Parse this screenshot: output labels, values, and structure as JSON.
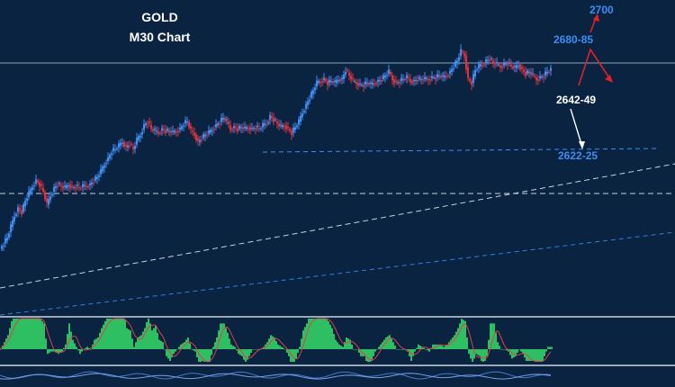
{
  "chart_data": {
    "type": "candlestick",
    "title": "GOLD",
    "subtitle": "M30 Chart",
    "levels": [
      {
        "label": "2700",
        "color": "#3d8ef5"
      },
      {
        "label": "2680-85",
        "color": "#3d8ef5"
      },
      {
        "label": "2642-49",
        "color": "#ffffff"
      },
      {
        "label": "2622-25",
        "color": "#3d8ef5"
      }
    ],
    "colors": {
      "background": "#0a2340",
      "bull_candle": "#3d8ef5",
      "bear_candle": "#e0303a",
      "histogram": "#2fbf63",
      "signal": "#e04048",
      "arrow_red": "#e0202a",
      "arrow_white": "#ffffff"
    },
    "price_path": [
      [
        0,
        2598
      ],
      [
        4,
        2601
      ],
      [
        8,
        2604
      ],
      [
        12,
        2610
      ],
      [
        16,
        2616
      ],
      [
        20,
        2620
      ],
      [
        24,
        2618
      ],
      [
        28,
        2624
      ],
      [
        32,
        2628
      ],
      [
        36,
        2632
      ],
      [
        40,
        2635
      ],
      [
        44,
        2633
      ],
      [
        48,
        2629
      ],
      [
        52,
        2622
      ],
      [
        56,
        2627
      ],
      [
        60,
        2631
      ],
      [
        64,
        2633
      ],
      [
        68,
        2632
      ],
      [
        72,
        2631
      ],
      [
        76,
        2633
      ],
      [
        80,
        2631
      ],
      [
        84,
        2632
      ],
      [
        88,
        2631
      ],
      [
        92,
        2632
      ],
      [
        96,
        2632
      ],
      [
        100,
        2633
      ],
      [
        104,
        2635
      ],
      [
        108,
        2637
      ],
      [
        112,
        2640
      ],
      [
        116,
        2644
      ],
      [
        120,
        2647
      ],
      [
        124,
        2651
      ],
      [
        128,
        2652
      ],
      [
        132,
        2654
      ],
      [
        136,
        2656
      ],
      [
        140,
        2653
      ],
      [
        144,
        2655
      ],
      [
        148,
        2652
      ],
      [
        152,
        2657
      ],
      [
        156,
        2660
      ],
      [
        160,
        2665
      ],
      [
        164,
        2667
      ],
      [
        168,
        2663
      ],
      [
        172,
        2662
      ],
      [
        176,
        2661
      ],
      [
        180,
        2663
      ],
      [
        184,
        2662
      ],
      [
        188,
        2662
      ],
      [
        192,
        2661
      ],
      [
        196,
        2662
      ],
      [
        200,
        2663
      ],
      [
        204,
        2666
      ],
      [
        208,
        2667
      ],
      [
        212,
        2662
      ],
      [
        216,
        2660
      ],
      [
        220,
        2656
      ],
      [
        224,
        2658
      ],
      [
        228,
        2660
      ],
      [
        232,
        2661
      ],
      [
        236,
        2663
      ],
      [
        240,
        2665
      ],
      [
        244,
        2667
      ],
      [
        248,
        2669
      ],
      [
        252,
        2667
      ],
      [
        256,
        2663
      ],
      [
        260,
        2664
      ],
      [
        264,
        2663
      ],
      [
        268,
        2664
      ],
      [
        272,
        2663
      ],
      [
        276,
        2664
      ],
      [
        280,
        2663
      ],
      [
        284,
        2664
      ],
      [
        288,
        2663
      ],
      [
        292,
        2665
      ],
      [
        296,
        2666
      ],
      [
        300,
        2670
      ],
      [
        304,
        2668
      ],
      [
        308,
        2666
      ],
      [
        312,
        2664
      ],
      [
        316,
        2665
      ],
      [
        320,
        2663
      ],
      [
        324,
        2661
      ],
      [
        328,
        2664
      ],
      [
        332,
        2667
      ],
      [
        336,
        2672
      ],
      [
        340,
        2676
      ],
      [
        344,
        2680
      ],
      [
        348,
        2684
      ],
      [
        352,
        2688
      ],
      [
        356,
        2689
      ],
      [
        360,
        2690
      ],
      [
        364,
        2688
      ],
      [
        368,
        2689
      ],
      [
        372,
        2688
      ],
      [
        376,
        2690
      ],
      [
        380,
        2690
      ],
      [
        384,
        2695
      ],
      [
        388,
        2692
      ],
      [
        392,
        2689
      ],
      [
        396,
        2688
      ],
      [
        400,
        2687
      ],
      [
        404,
        2687
      ],
      [
        408,
        2688
      ],
      [
        412,
        2687
      ],
      [
        416,
        2688
      ],
      [
        420,
        2689
      ],
      [
        424,
        2690
      ],
      [
        428,
        2692
      ],
      [
        432,
        2694
      ],
      [
        436,
        2690
      ],
      [
        440,
        2688
      ],
      [
        444,
        2689
      ],
      [
        448,
        2690
      ],
      [
        452,
        2691
      ],
      [
        456,
        2689
      ],
      [
        460,
        2689
      ],
      [
        464,
        2690
      ],
      [
        468,
        2690
      ],
      [
        472,
        2690
      ],
      [
        476,
        2690
      ],
      [
        480,
        2691
      ],
      [
        484,
        2691
      ],
      [
        488,
        2692
      ],
      [
        492,
        2691
      ],
      [
        496,
        2692
      ],
      [
        500,
        2694
      ],
      [
        504,
        2697
      ],
      [
        508,
        2700
      ],
      [
        512,
        2705
      ],
      [
        516,
        2703
      ],
      [
        520,
        2690
      ],
      [
        524,
        2688
      ],
      [
        528,
        2695
      ],
      [
        532,
        2697
      ],
      [
        536,
        2698
      ],
      [
        540,
        2700
      ],
      [
        544,
        2701
      ],
      [
        548,
        2699
      ],
      [
        552,
        2698
      ],
      [
        556,
        2697
      ],
      [
        560,
        2698
      ],
      [
        564,
        2699
      ],
      [
        568,
        2697
      ],
      [
        572,
        2696
      ],
      [
        576,
        2698
      ],
      [
        580,
        2695
      ],
      [
        584,
        2693
      ],
      [
        588,
        2694
      ],
      [
        592,
        2692
      ],
      [
        596,
        2690
      ],
      [
        600,
        2691
      ],
      [
        604,
        2692
      ],
      [
        608,
        2694
      ],
      [
        612,
        2695
      ]
    ]
  }
}
